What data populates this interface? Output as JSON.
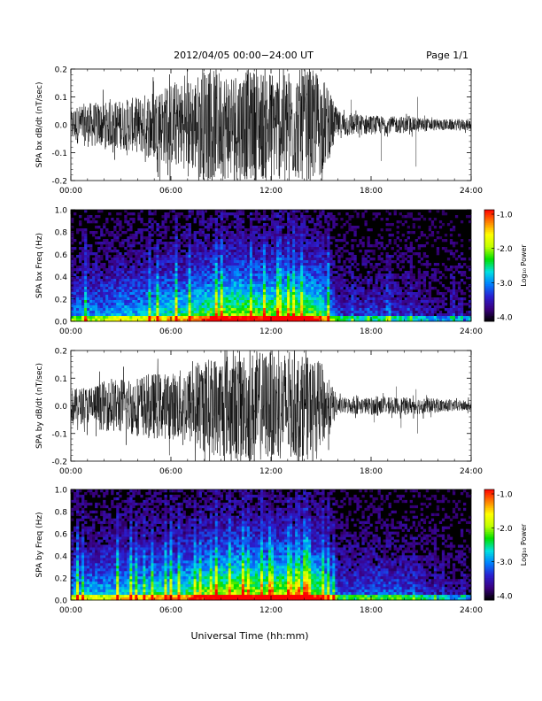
{
  "header": {
    "date_range": "2012/04/05  00:00−24:00 UT",
    "page": "Page 1/1"
  },
  "xaxis": {
    "label": "Universal Time (hh:mm)",
    "ticks": [
      "00:00",
      "06:00",
      "12:00",
      "18:00",
      "24:00"
    ]
  },
  "colorbar": {
    "label": "Log₁₀ Power",
    "ticks": [
      "-1.0",
      "-2.0",
      "-3.0",
      "-4.0"
    ],
    "range": [
      -4.0,
      -1.0
    ],
    "colors": [
      "#000000",
      "#3a0080",
      "#2a1fd0",
      "#0080ff",
      "#00e0e0",
      "#00e000",
      "#c0ff00",
      "#ffff00",
      "#ff8000",
      "#ff0000"
    ]
  },
  "chart_data": [
    {
      "type": "line",
      "name": "bx-waveform",
      "ylabel": "SPA bx dB/dt (nT/sec)",
      "yticks": [
        "0.2",
        "0.1",
        "0.0",
        "-0.1",
        "-0.2"
      ],
      "ylim": [
        -0.2,
        0.2
      ],
      "xlim": [
        0,
        24
      ],
      "envelope": {
        "hours": [
          0,
          1,
          2,
          3,
          4,
          5,
          6,
          7,
          8,
          9,
          10,
          11,
          12,
          13,
          14,
          15,
          16,
          17,
          18,
          19,
          20,
          21,
          22,
          23,
          24
        ],
        "amplitude": [
          0.06,
          0.08,
          0.08,
          0.09,
          0.1,
          0.13,
          0.15,
          0.16,
          0.2,
          0.2,
          0.2,
          0.2,
          0.2,
          0.2,
          0.2,
          0.19,
          0.05,
          0.04,
          0.035,
          0.03,
          0.03,
          0.025,
          0.02,
          0.02,
          0.02
        ]
      },
      "spikes": [
        [
          16.8,
          0.09
        ],
        [
          18.6,
          -0.13
        ],
        [
          20.7,
          -0.15
        ],
        [
          20.8,
          0.1
        ]
      ]
    },
    {
      "type": "heatmap",
      "name": "bx-spectrogram",
      "ylabel": "SPA bx Freq (Hz)",
      "yticks": [
        "1.0",
        "0.8",
        "0.6",
        "0.4",
        "0.2",
        "0.0"
      ],
      "ylim": [
        0.0,
        1.0
      ],
      "xlim": [
        0,
        24
      ],
      "activity": {
        "hours": [
          0,
          1,
          2,
          3,
          4,
          5,
          6,
          7,
          8,
          9,
          10,
          11,
          12,
          13,
          14,
          15,
          16,
          17,
          18,
          19,
          20,
          21,
          22,
          23,
          24
        ],
        "level": [
          0.35,
          0.4,
          0.4,
          0.45,
          0.45,
          0.5,
          0.55,
          0.55,
          0.65,
          0.7,
          0.75,
          0.7,
          0.7,
          0.75,
          0.7,
          0.65,
          0.25,
          0.25,
          0.25,
          0.25,
          0.22,
          0.2,
          0.15,
          0.12,
          0.1
        ]
      }
    },
    {
      "type": "line",
      "name": "by-waveform",
      "ylabel": "SPA by dB/dt (nT/sec)",
      "yticks": [
        "0.2",
        "0.1",
        "0.0",
        "-0.1",
        "-0.2"
      ],
      "ylim": [
        -0.2,
        0.2
      ],
      "xlim": [
        0,
        24
      ],
      "envelope": {
        "hours": [
          0,
          1,
          2,
          3,
          4,
          5,
          6,
          7,
          8,
          9,
          10,
          11,
          12,
          13,
          14,
          15,
          16,
          17,
          18,
          19,
          20,
          21,
          22,
          23,
          24
        ],
        "amplitude": [
          0.06,
          0.07,
          0.09,
          0.1,
          0.11,
          0.12,
          0.12,
          0.14,
          0.17,
          0.19,
          0.2,
          0.2,
          0.2,
          0.2,
          0.18,
          0.16,
          0.03,
          0.03,
          0.03,
          0.03,
          0.03,
          0.03,
          0.025,
          0.02,
          0.02
        ]
      },
      "spikes": [
        [
          18.2,
          -0.06
        ],
        [
          19.5,
          0.07
        ],
        [
          20.8,
          -0.1
        ],
        [
          20.7,
          0.06
        ],
        [
          19.8,
          -0.08
        ]
      ]
    },
    {
      "type": "heatmap",
      "name": "by-spectrogram",
      "ylabel": "SPA by Freq (Hz)",
      "yticks": [
        "1.0",
        "0.8",
        "0.6",
        "0.4",
        "0.2",
        "0.0"
      ],
      "ylim": [
        0.0,
        1.0
      ],
      "xlim": [
        0,
        24
      ],
      "activity": {
        "hours": [
          0,
          1,
          2,
          3,
          4,
          5,
          6,
          7,
          8,
          9,
          10,
          11,
          12,
          13,
          14,
          15,
          16,
          17,
          18,
          19,
          20,
          21,
          22,
          23,
          24
        ],
        "level": [
          0.4,
          0.45,
          0.45,
          0.5,
          0.5,
          0.55,
          0.55,
          0.6,
          0.7,
          0.75,
          0.8,
          0.75,
          0.75,
          0.78,
          0.72,
          0.68,
          0.3,
          0.3,
          0.32,
          0.32,
          0.3,
          0.25,
          0.2,
          0.15,
          0.12
        ]
      }
    }
  ]
}
